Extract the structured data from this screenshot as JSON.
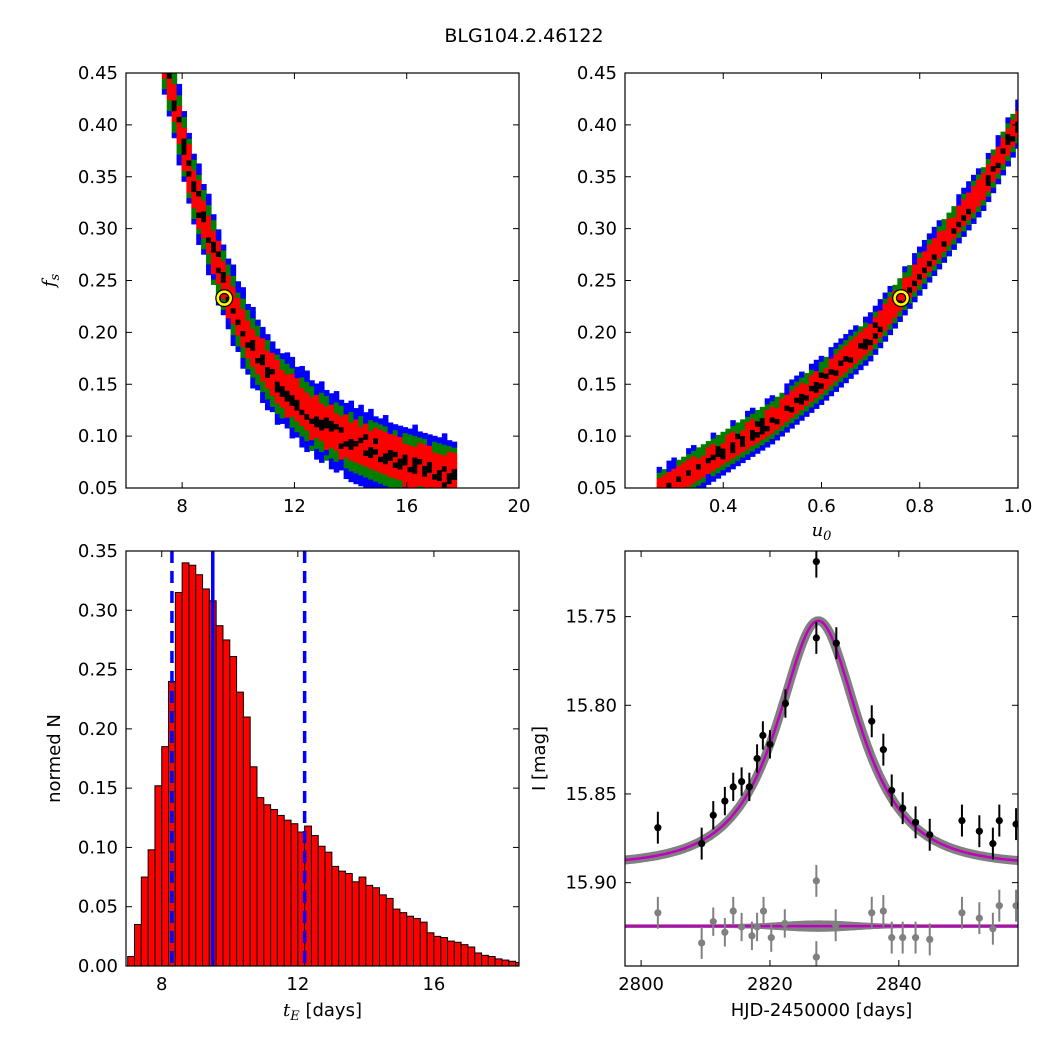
{
  "figure": {
    "title": "BLG104.2.46122"
  },
  "colors": {
    "sigma1": "#ff0000",
    "sigma2": "#007f00",
    "sigma3": "#0000ff",
    "best": "#000000",
    "marker": "#ffff00",
    "hist": "#ff0000",
    "model": "#bf00bf",
    "band": "#808080",
    "data": "#000000",
    "resid": "#808080"
  },
  "chart_data": [
    {
      "id": "fs_vs_tE",
      "type": "heatmap",
      "title": "",
      "xlabel": "",
      "ylabel": "f_s",
      "ylabel_main": "f",
      "ylabel_sub": "s",
      "xlim": [
        6,
        20
      ],
      "ylim": [
        0.05,
        0.45
      ],
      "xticks": [
        "8",
        "12",
        "16",
        "20"
      ],
      "yticks": [
        "0.05",
        "0.10",
        "0.15",
        "0.20",
        "0.25",
        "0.30",
        "0.35",
        "0.40",
        "0.45"
      ],
      "ridge": [
        [
          7.9,
          0.4
        ],
        [
          8.4,
          0.34
        ],
        [
          9.0,
          0.29
        ],
        [
          9.6,
          0.24
        ],
        [
          10.4,
          0.19
        ],
        [
          11.4,
          0.15
        ],
        [
          12.6,
          0.12
        ],
        [
          14.0,
          0.095
        ],
        [
          15.5,
          0.078
        ],
        [
          17.5,
          0.062
        ]
      ],
      "contour_half_widths": {
        "best": 0.008,
        "sigma1": 0.02,
        "sigma2": 0.028,
        "sigma3": 0.036
      },
      "best_fit": {
        "x": 9.5,
        "y": 0.233
      }
    },
    {
      "id": "fs_vs_u0",
      "type": "heatmap",
      "title": "",
      "xlabel": "u_0",
      "xlabel_main": "u",
      "xlabel_sub": "0",
      "ylabel": "",
      "xlim": [
        0.2,
        1.0
      ],
      "ylim": [
        0.05,
        0.45
      ],
      "xticks": [
        "0.4",
        "0.6",
        "0.8",
        "1.0"
      ],
      "yticks": [
        "0.05",
        "0.10",
        "0.15",
        "0.20",
        "0.25",
        "0.30",
        "0.35",
        "0.40",
        "0.45"
      ],
      "ridge": [
        [
          0.3,
          0.055
        ],
        [
          0.4,
          0.085
        ],
        [
          0.5,
          0.115
        ],
        [
          0.6,
          0.153
        ],
        [
          0.7,
          0.195
        ],
        [
          0.76,
          0.233
        ],
        [
          0.85,
          0.29
        ],
        [
          0.93,
          0.34
        ],
        [
          1.0,
          0.4
        ]
      ],
      "contour_half_widths": {
        "best": 0.005,
        "sigma1": 0.012,
        "sigma2": 0.017,
        "sigma3": 0.022
      },
      "best_fit": {
        "x": 0.762,
        "y": 0.233
      }
    },
    {
      "id": "tE_histogram",
      "type": "bar",
      "title": "",
      "xlabel": "t_E  [days]",
      "xlabel_main": "t",
      "xlabel_sub": "E",
      "xlabel_rest": " [days]",
      "ylabel": "normed N",
      "xlim": [
        6.95,
        18.5
      ],
      "ylim": [
        0,
        0.35
      ],
      "xticks": [
        "8",
        "12",
        "16"
      ],
      "yticks": [
        "0.00",
        "0.05",
        "0.10",
        "0.15",
        "0.20",
        "0.25",
        "0.30",
        "0.35"
      ],
      "bin_start": 7.0,
      "bin_width": 0.2,
      "values": [
        0.008,
        0.035,
        0.075,
        0.098,
        0.152,
        0.185,
        0.24,
        0.315,
        0.34,
        0.338,
        0.33,
        0.318,
        0.308,
        0.287,
        0.275,
        0.261,
        0.231,
        0.21,
        0.168,
        0.142,
        0.136,
        0.132,
        0.127,
        0.123,
        0.12,
        0.113,
        0.118,
        0.11,
        0.101,
        0.096,
        0.084,
        0.08,
        0.078,
        0.071,
        0.075,
        0.068,
        0.066,
        0.06,
        0.057,
        0.048,
        0.045,
        0.042,
        0.04,
        0.037,
        0.028,
        0.025,
        0.024,
        0.021,
        0.02,
        0.018,
        0.016,
        0.011,
        0.009,
        0.008,
        0.006,
        0.005,
        0.004,
        0.003,
        0.002,
        0.002,
        0.001,
        0.001,
        0.001,
        0.001,
        0.001,
        0.001,
        0.001,
        0.001
      ],
      "median": 9.5,
      "lower": 8.3,
      "upper": 12.2
    },
    {
      "id": "light_curve",
      "type": "scatter",
      "title": "",
      "xlabel": "HJD-2450000 [days]",
      "ylabel": "I [mag]",
      "xlim": [
        2797.5,
        2858.5
      ],
      "ylim": [
        15.947,
        15.713
      ],
      "y_inverted": true,
      "xticks": [
        "2800",
        "2820",
        "2840"
      ],
      "yticks": [
        "15.75",
        "15.80",
        "15.85",
        "15.90"
      ],
      "model": {
        "t0": 2827.5,
        "tE": 9.5,
        "u0": 0.762,
        "fs": 0.233,
        "I_base": 15.8905
      },
      "residual_baseline": 15.9245,
      "data": [
        [
          2802.6,
          15.869,
          0.009
        ],
        [
          2809.4,
          15.878,
          0.009
        ],
        [
          2811.2,
          15.862,
          0.008
        ],
        [
          2813.0,
          15.854,
          0.008
        ],
        [
          2814.3,
          15.846,
          0.008
        ],
        [
          2815.6,
          15.843,
          0.008
        ],
        [
          2816.8,
          15.846,
          0.008
        ],
        [
          2818.0,
          15.83,
          0.008
        ],
        [
          2818.9,
          15.817,
          0.008
        ],
        [
          2820.0,
          15.822,
          0.008
        ],
        [
          2822.4,
          15.799,
          0.008
        ],
        [
          2827.2,
          15.719,
          0.009
        ],
        [
          2827.2,
          15.762,
          0.009
        ],
        [
          2830.3,
          15.765,
          0.009
        ],
        [
          2835.8,
          15.809,
          0.009
        ],
        [
          2837.6,
          15.825,
          0.009
        ],
        [
          2838.9,
          15.848,
          0.009
        ],
        [
          2840.6,
          15.858,
          0.009
        ],
        [
          2842.6,
          15.866,
          0.009
        ],
        [
          2844.8,
          15.873,
          0.009
        ],
        [
          2849.8,
          15.865,
          0.009
        ],
        [
          2852.5,
          15.871,
          0.009
        ],
        [
          2854.6,
          15.878,
          0.009
        ],
        [
          2855.6,
          15.865,
          0.009
        ],
        [
          2858.2,
          15.867,
          0.009
        ]
      ],
      "residuals": [
        [
          2802.6,
          15.917,
          0.009
        ],
        [
          2809.4,
          15.934,
          0.009
        ],
        [
          2811.2,
          15.922,
          0.008
        ],
        [
          2813.0,
          15.928,
          0.008
        ],
        [
          2814.3,
          15.916,
          0.008
        ],
        [
          2815.6,
          15.925,
          0.008
        ],
        [
          2817.2,
          15.93,
          0.008
        ],
        [
          2818.0,
          15.925,
          0.008
        ],
        [
          2819.0,
          15.916,
          0.008
        ],
        [
          2820.2,
          15.931,
          0.008
        ],
        [
          2822.3,
          15.923,
          0.008
        ],
        [
          2827.2,
          15.899,
          0.009
        ],
        [
          2827.2,
          15.942,
          0.009
        ],
        [
          2830.2,
          15.924,
          0.009
        ],
        [
          2835.8,
          15.917,
          0.009
        ],
        [
          2837.6,
          15.916,
          0.009
        ],
        [
          2838.9,
          15.931,
          0.009
        ],
        [
          2840.6,
          15.931,
          0.009
        ],
        [
          2842.6,
          15.931,
          0.009
        ],
        [
          2844.8,
          15.932,
          0.009
        ],
        [
          2849.8,
          15.917,
          0.009
        ],
        [
          2852.5,
          15.92,
          0.009
        ],
        [
          2854.6,
          15.926,
          0.009
        ],
        [
          2855.6,
          15.913,
          0.009
        ],
        [
          2858.2,
          15.913,
          0.009
        ]
      ]
    }
  ]
}
